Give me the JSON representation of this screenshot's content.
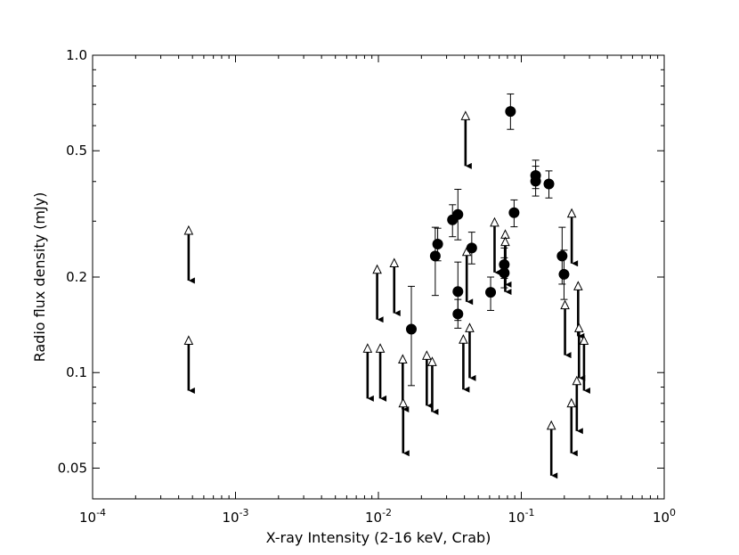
{
  "chart_data": {
    "type": "scatter",
    "title": "",
    "xlabel": "X-ray Intensity (2-16 keV, Crab)",
    "ylabel": "Radio flux density (mJy)",
    "xscale": "log",
    "yscale": "log",
    "xlim": [
      0.0001,
      1
    ],
    "ylim": [
      0.04,
      1.0
    ],
    "grid": false,
    "legend": "none",
    "x_ticks": [
      {
        "value": 0.0001,
        "base": "10",
        "exp": "-4"
      },
      {
        "value": 0.001,
        "base": "10",
        "exp": "-3"
      },
      {
        "value": 0.01,
        "base": "10",
        "exp": "-2"
      },
      {
        "value": 0.1,
        "base": "10",
        "exp": "-1"
      },
      {
        "value": 1,
        "base": "10",
        "exp": "0"
      }
    ],
    "y_ticks": [
      {
        "value": 0.05,
        "label": "0.05"
      },
      {
        "value": 0.1,
        "label": "0.1"
      },
      {
        "value": 0.2,
        "label": "0.2"
      },
      {
        "value": 0.5,
        "label": "0.5"
      },
      {
        "value": 1.0,
        "label": "1.0"
      }
    ],
    "detections": [
      {
        "x": 0.017,
        "y": 0.137,
        "ylo": 0.091,
        "yhi": 0.187
      },
      {
        "x": 0.025,
        "y": 0.233,
        "ylo": 0.175,
        "yhi": 0.287
      },
      {
        "x": 0.026,
        "y": 0.254,
        "ylo": 0.225,
        "yhi": 0.285
      },
      {
        "x": 0.033,
        "y": 0.303,
        "ylo": 0.268,
        "yhi": 0.338
      },
      {
        "x": 0.036,
        "y": 0.315,
        "ylo": 0.262,
        "yhi": 0.378
      },
      {
        "x": 0.036,
        "y": 0.18,
        "ylo": 0.146,
        "yhi": 0.223
      },
      {
        "x": 0.036,
        "y": 0.153,
        "ylo": 0.138,
        "yhi": 0.17
      },
      {
        "x": 0.045,
        "y": 0.247,
        "ylo": 0.22,
        "yhi": 0.277
      },
      {
        "x": 0.061,
        "y": 0.179,
        "ylo": 0.157,
        "yhi": 0.2
      },
      {
        "x": 0.076,
        "y": 0.219,
        "ylo": 0.198,
        "yhi": 0.247
      },
      {
        "x": 0.076,
        "y": 0.206,
        "ylo": 0.185,
        "yhi": 0.23
      },
      {
        "x": 0.084,
        "y": 0.665,
        "ylo": 0.584,
        "yhi": 0.755
      },
      {
        "x": 0.089,
        "y": 0.319,
        "ylo": 0.288,
        "yhi": 0.35
      },
      {
        "x": 0.126,
        "y": 0.418,
        "ylo": 0.38,
        "yhi": 0.467
      },
      {
        "x": 0.126,
        "y": 0.401,
        "ylo": 0.36,
        "yhi": 0.447
      },
      {
        "x": 0.156,
        "y": 0.393,
        "ylo": 0.355,
        "yhi": 0.432
      },
      {
        "x": 0.193,
        "y": 0.233,
        "ylo": 0.19,
        "yhi": 0.287
      },
      {
        "x": 0.199,
        "y": 0.204,
        "ylo": 0.17,
        "yhi": 0.243
      }
    ],
    "upper_limits": [
      {
        "x": 0.00047,
        "y": 0.28
      },
      {
        "x": 0.00047,
        "y": 0.126
      },
      {
        "x": 0.0084,
        "y": 0.119
      },
      {
        "x": 0.0098,
        "y": 0.211
      },
      {
        "x": 0.0103,
        "y": 0.119
      },
      {
        "x": 0.0129,
        "y": 0.221
      },
      {
        "x": 0.0148,
        "y": 0.11
      },
      {
        "x": 0.0149,
        "y": 0.08
      },
      {
        "x": 0.0218,
        "y": 0.113
      },
      {
        "x": 0.0238,
        "y": 0.108
      },
      {
        "x": 0.0393,
        "y": 0.127
      },
      {
        "x": 0.0407,
        "y": 0.643
      },
      {
        "x": 0.0415,
        "y": 0.24
      },
      {
        "x": 0.0435,
        "y": 0.138
      },
      {
        "x": 0.065,
        "y": 0.297
      },
      {
        "x": 0.0772,
        "y": 0.272
      },
      {
        "x": 0.0772,
        "y": 0.258
      },
      {
        "x": 0.1622,
        "y": 0.068
      },
      {
        "x": 0.2022,
        "y": 0.163
      },
      {
        "x": 0.2253,
        "y": 0.317
      },
      {
        "x": 0.2242,
        "y": 0.08
      },
      {
        "x": 0.2445,
        "y": 0.094
      },
      {
        "x": 0.2499,
        "y": 0.187
      },
      {
        "x": 0.2533,
        "y": 0.138
      },
      {
        "x": 0.2747,
        "y": 0.126
      }
    ]
  }
}
